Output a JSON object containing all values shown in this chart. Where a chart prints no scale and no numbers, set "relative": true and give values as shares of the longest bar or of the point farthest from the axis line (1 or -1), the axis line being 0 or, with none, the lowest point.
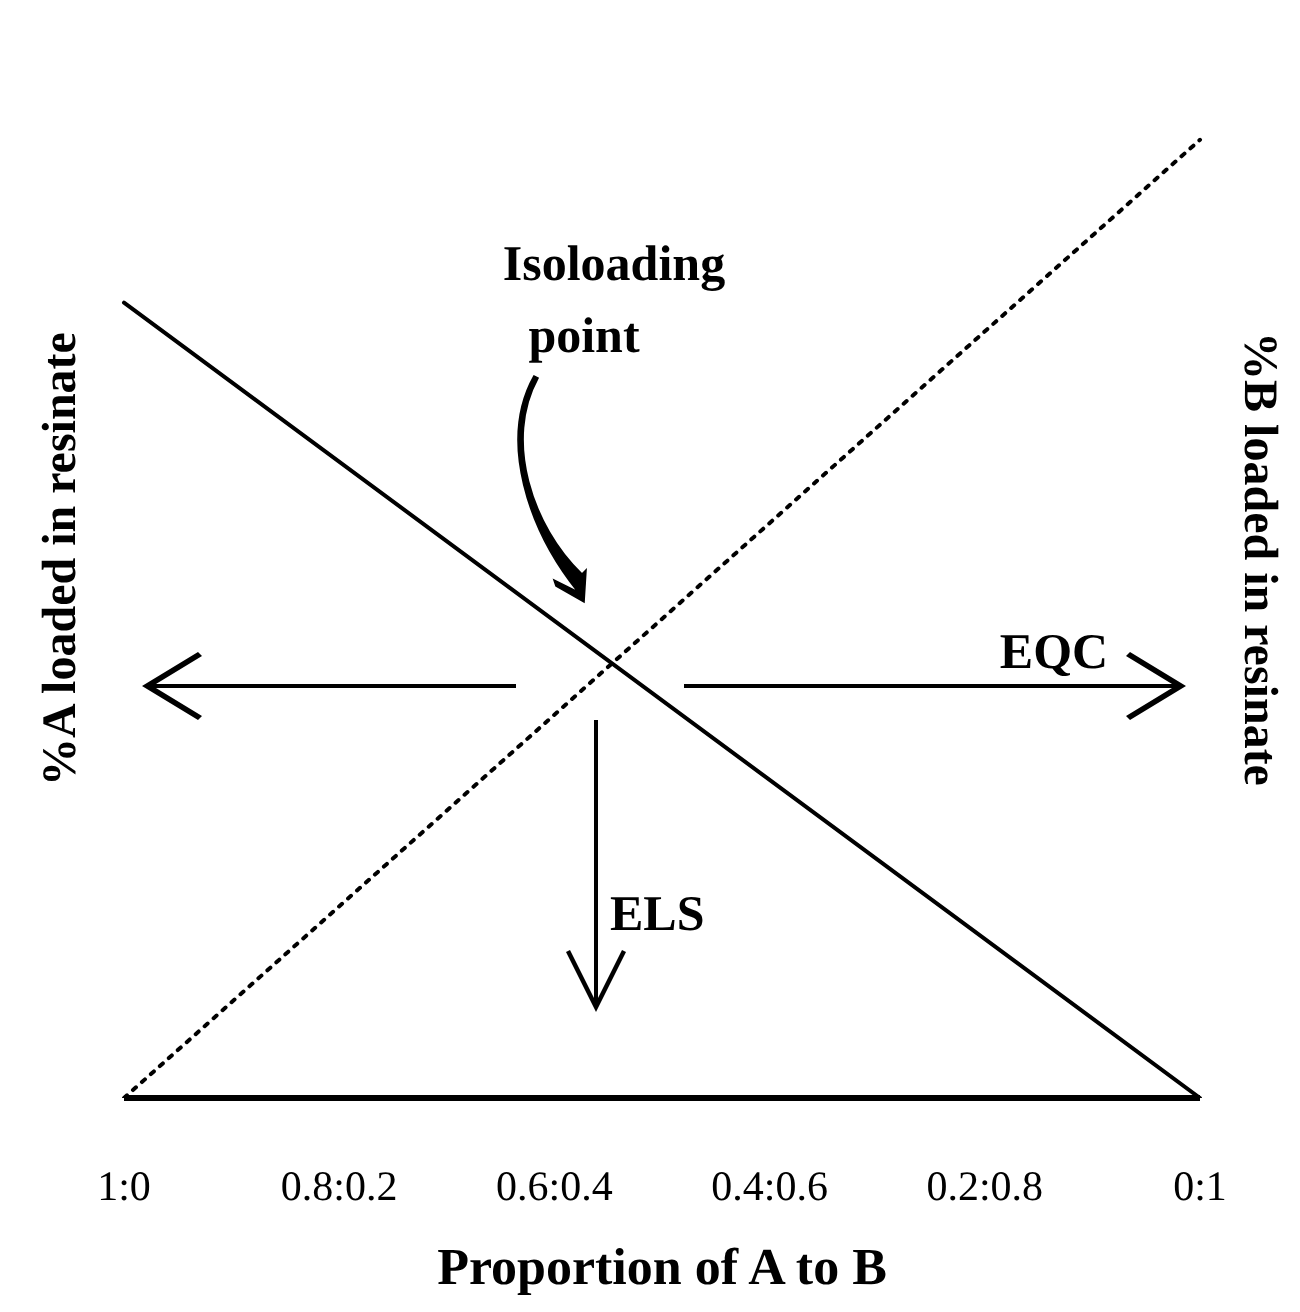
{
  "chart_data": {
    "type": "line",
    "relative": true,
    "xlabel": "Proportion of A to B",
    "ylabel": "%A loaded in resinate",
    "y2label": "%B loaded in resinate",
    "categories": [
      "1:0",
      "0.8:0.2",
      "0.6:0.4",
      "0.4:0.6",
      "0.2:0.8",
      "0:1"
    ],
    "series": [
      {
        "color": "#000000",
        "line_style": "solid",
        "values": [
          0.83,
          null,
          null,
          null,
          null,
          0
        ]
      },
      {
        "color": "#000000",
        "line_style": "dotted",
        "values": [
          0,
          null,
          null,
          null,
          null,
          1
        ]
      }
    ],
    "annotations": [
      "Isoloading point",
      "EQC",
      "ELS"
    ],
    "marker": "none"
  }
}
